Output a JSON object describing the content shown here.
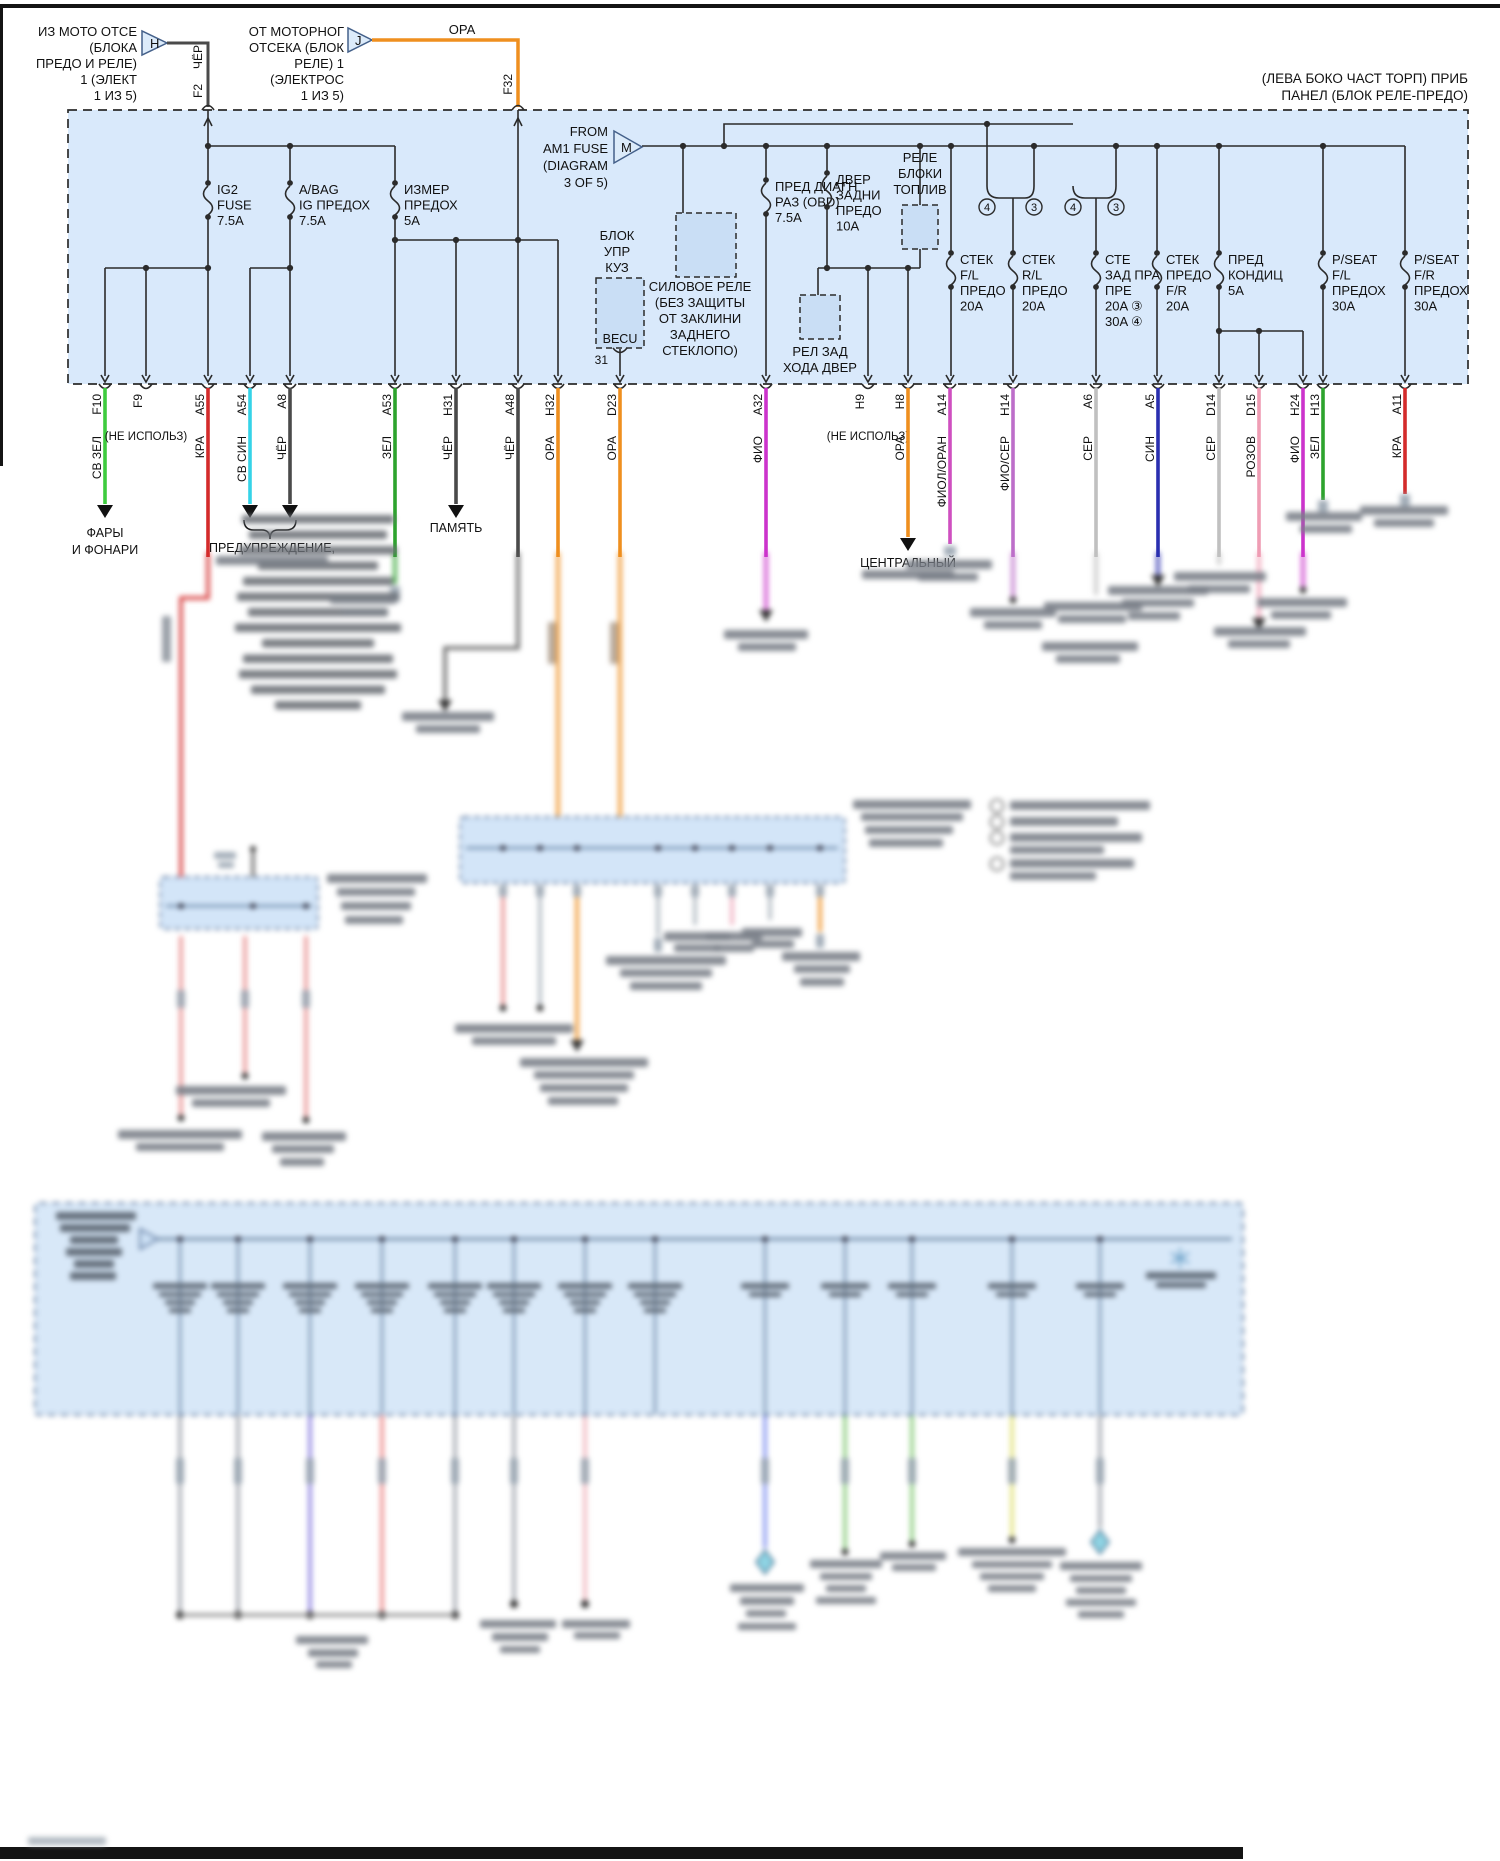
{
  "sources": {
    "left": {
      "lines": [
        "ИЗ МОТО ОТСЕ",
        "(БЛОКА",
        "ПРЕДО И РЕЛЕ)",
        "1 (ЭЛЕКТ",
        "1 ИЗ 5)"
      ],
      "letter": "H",
      "wire_label": "ЧЁР",
      "pin_label": "F2"
    },
    "center": {
      "lines": [
        "ОТ МОТОРНОГ",
        "ОТСЕКА (БЛОК",
        "РЕЛЕ) 1",
        "(ЭЛЕКТРОС",
        "1 ИЗ 5)"
      ],
      "letter": "J",
      "wire_label": "ОРА",
      "pin_label": "F32"
    }
  },
  "panel_title": {
    "lines": [
      "(ЛЕВА БОКО ЧАСТ ТОРП) ПРИБ",
      "ПАНЕЛ (БЛОК РЕЛЕ-ПРЕДО)"
    ]
  },
  "am1": {
    "lines": [
      "FROM",
      "AM1 FUSE",
      "(DIAGRAM",
      "3 OF 5)"
    ],
    "letter": "M"
  },
  "fuses": [
    {
      "lines": [
        "IG2",
        "FUSE",
        "7.5A"
      ]
    },
    {
      "lines": [
        "A/BAG",
        "IG ПРЕДОХ",
        "7.5A"
      ]
    },
    {
      "lines": [
        "ИЗМЕР",
        "ПРЕДОХ",
        "5A"
      ]
    },
    {
      "lines": [
        "ПРЕД ДИАГН",
        "РАЗ (OBD)",
        "7.5A"
      ]
    },
    {
      "lines": [
        "ДВЕР",
        "ЗАДНИ",
        "ПРЕДО",
        "10A"
      ]
    },
    {
      "lines": [
        "СТЕК",
        "F/L",
        "ПРЕДО",
        "20A"
      ]
    },
    {
      "lines": [
        "СТЕК",
        "R/L",
        "ПРЕДО",
        "20A"
      ]
    },
    {
      "lines": [
        "СТЕ",
        "ЗАД ПРА",
        "ПРЕ",
        "20A ③",
        "30A ④"
      ]
    },
    {
      "lines": [
        "СТЕК",
        "ПРЕДО",
        "F/R",
        "20A"
      ]
    },
    {
      "lines": [
        "ПРЕД",
        "КОНДИЦ",
        "5A"
      ]
    },
    {
      "lines": [
        "P/SEAT",
        "F/L",
        "ПРЕДОХ",
        "30A"
      ]
    },
    {
      "lines": [
        "P/SEAT",
        "F/R",
        "ПРЕДОХ",
        "30A"
      ]
    }
  ],
  "relays": {
    "power_relay": [
      "СИЛОВОЕ РЕЛЕ",
      "(БЕЗ ЗАЩИТЫ",
      "ОТ ЗАКЛИНИ",
      "ЗАДНЕГО",
      "СТЕКЛОПО)"
    ],
    "fuel_lock_relay": [
      "РЕЛЕ",
      "БЛОКИ",
      "ТОПЛИВ"
    ],
    "rear_door_relay": [
      "РЕЛ ЗАД",
      "ХОДА ДВЕР"
    ]
  },
  "becu": {
    "title": [
      "БЛОК",
      "УПР",
      "КУЗ"
    ],
    "name": "BECU",
    "pin": "31"
  },
  "branch_tags": [
    "4",
    "3",
    "4",
    "3"
  ],
  "pins": [
    {
      "id": "F10",
      "color_label": "СВ ЗЕЛ",
      "color": "#3ecb3e"
    },
    {
      "id": "F9",
      "note": "(НЕ ИСПОЛЬЗ)"
    },
    {
      "id": "A55",
      "color_label": "КРА",
      "color": "#d42b2b"
    },
    {
      "id": "A54",
      "color_label": "СВ СИН",
      "color": "#35d3e8"
    },
    {
      "id": "A8",
      "color_label": "ЧЁР",
      "color": "#4a4a4a"
    },
    {
      "id": "A53",
      "color_label": "ЗЕЛ",
      "color": "#2da32d"
    },
    {
      "id": "H31",
      "color_label": "ЧЁР",
      "color": "#4a4a4a"
    },
    {
      "id": "A48",
      "color_label": "ЧЁР",
      "color": "#4a4a4a"
    },
    {
      "id": "H32",
      "color_label": "ОРА",
      "color": "#ef8f1f"
    },
    {
      "id": "D23",
      "color_label": "ОРА",
      "color": "#ef8f1f"
    },
    {
      "id": "A32",
      "color_label": "ФИО",
      "color": "#cc33cc"
    },
    {
      "id": "H9",
      "note": "(НЕ ИСПОЛЬЗ)"
    },
    {
      "id": "H8",
      "color_label": "ОРА",
      "color": "#ef8f1f"
    },
    {
      "id": "A14",
      "color_label": "ФИОЛ/ОРАН",
      "color": "#cf4fc0"
    },
    {
      "id": "H14",
      "color_label": "ФИО/СЕР",
      "color": "#bd6ec9"
    },
    {
      "id": "A6",
      "color_label": "СЕР",
      "color": "#c0c0c0"
    },
    {
      "id": "A5",
      "color_label": "СИН",
      "color": "#2a2fb0"
    },
    {
      "id": "D14",
      "color_label": "СЕР",
      "color": "#c0c0c0"
    },
    {
      "id": "D15",
      "color_label": "РОЗОВ",
      "color": "#ef9db4"
    },
    {
      "id": "H24",
      "color_label": "ФИО",
      "color": "#cc33cc"
    },
    {
      "id": "H13",
      "color_label": "ЗЕЛ",
      "color": "#2da32d"
    },
    {
      "id": "A11",
      "color_label": "КРА",
      "color": "#d42b2b"
    }
  ],
  "destinations": {
    "headlights": [
      "ФАРЫ",
      "И ФОНАРИ"
    ],
    "warning": "ПРЕДУПРЕЖДЕНИЕ,",
    "memory": "ПАМЯТЬ",
    "central": "ЦЕНТРАЛЬНЫЙ"
  },
  "colors": {
    "box_fill": "#d9e9fb",
    "component_fill": "#c9def5",
    "line": "#2b2b2b",
    "blue_line": "#33557a",
    "orange": "#ef8f1f",
    "black_wire": "#4a4a4a",
    "tri_fill": "#dcebfa",
    "tri_stroke": "#44608a"
  }
}
